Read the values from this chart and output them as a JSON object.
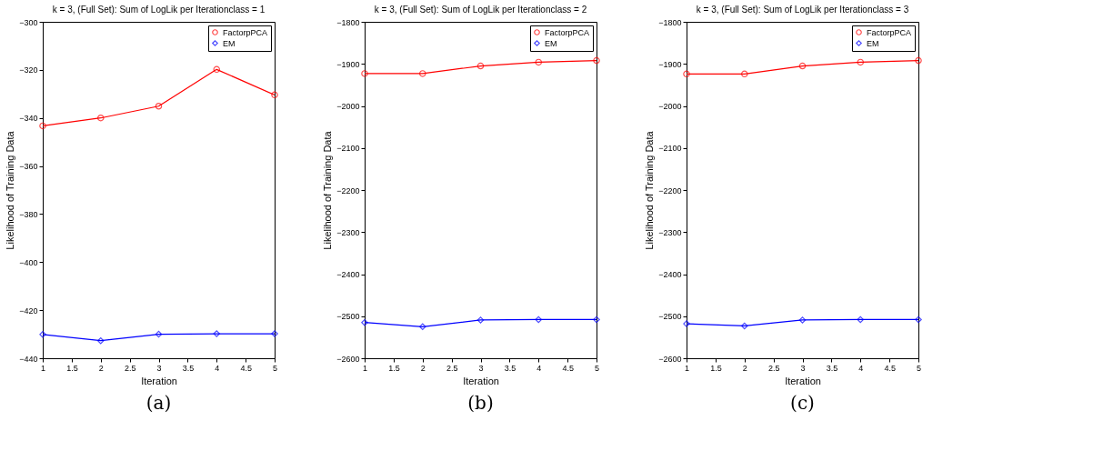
{
  "chart_data": [
    {
      "type": "line",
      "title": "k = 3, (Full Set): Sum of LogLik per Iterationclass = 1",
      "xlabel": "Iteration",
      "ylabel": "Likelihood of Training Data",
      "x": [
        1,
        2,
        3,
        4,
        5
      ],
      "xlim": [
        1,
        5
      ],
      "xticks": [
        1,
        1.5,
        2,
        2.5,
        3,
        3.5,
        4,
        4.5,
        5
      ],
      "ylim": [
        -440,
        -300
      ],
      "yticks": [
        -440,
        -420,
        -400,
        -380,
        -360,
        -340,
        -320,
        -300
      ],
      "grid": false,
      "legend": "top right",
      "line_style": "solid",
      "annotations": [
        "(a)"
      ],
      "series": [
        {
          "name": "FactorpPCA",
          "color": "#ff0000",
          "marker": "circle",
          "values": [
            -343.3,
            -340,
            -335.1,
            -319.8,
            -330.4
          ]
        },
        {
          "name": "EM",
          "color": "#0000ff",
          "marker": "diamond",
          "values": [
            -430.1,
            -432.7,
            -430,
            -429.8,
            -429.8
          ]
        }
      ]
    },
    {
      "type": "line",
      "title": "k = 3, (Full Set): Sum of LogLik per Iterationclass = 2",
      "xlabel": "Iteration",
      "ylabel": "Likelihood of Training Data",
      "x": [
        1,
        2,
        3,
        4,
        5
      ],
      "xlim": [
        1,
        5
      ],
      "xticks": [
        1,
        1.5,
        2,
        2.5,
        3,
        3.5,
        4,
        4.5,
        5
      ],
      "ylim": [
        -2600,
        -1800
      ],
      "yticks": [
        -2600,
        -2500,
        -2400,
        -2300,
        -2200,
        -2100,
        -2000,
        -1900,
        -1800
      ],
      "grid": false,
      "legend": "top right",
      "line_style": "solid",
      "annotations": [
        "(b)"
      ],
      "series": [
        {
          "name": "FactorpPCA",
          "color": "#ff0000",
          "marker": "circle",
          "values": [
            -1923,
            -1923,
            -1905,
            -1896,
            -1892
          ]
        },
        {
          "name": "EM",
          "color": "#0000ff",
          "marker": "diamond",
          "values": [
            -2515,
            -2525,
            -2509,
            -2508,
            -2508
          ]
        }
      ]
    },
    {
      "type": "line",
      "title": "k = 3, (Full Set): Sum of LogLik per Iterationclass = 3",
      "xlabel": "Iteration",
      "ylabel": "Likelihood of Training Data",
      "x": [
        1,
        2,
        3,
        4,
        5
      ],
      "xlim": [
        1,
        5
      ],
      "xticks": [
        1,
        1.5,
        2,
        2.5,
        3,
        3.5,
        4,
        4.5,
        5
      ],
      "ylim": [
        -2600,
        -1800
      ],
      "yticks": [
        -2600,
        -2500,
        -2400,
        -2300,
        -2200,
        -2100,
        -2000,
        -1900,
        -1800
      ],
      "grid": false,
      "legend": "top right",
      "line_style": "solid",
      "annotations": [
        "(c)"
      ],
      "series": [
        {
          "name": "FactorpPCA",
          "color": "#ff0000",
          "marker": "circle",
          "values": [
            -1924,
            -1924,
            -1905,
            -1896,
            -1892
          ]
        },
        {
          "name": "EM",
          "color": "#0000ff",
          "marker": "diamond",
          "values": [
            -2518,
            -2523,
            -2509,
            -2508,
            -2508
          ]
        }
      ]
    }
  ]
}
